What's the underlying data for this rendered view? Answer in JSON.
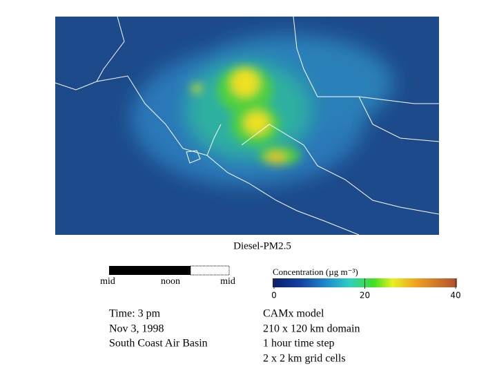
{
  "map": {
    "title": "Diesel-PM2.5"
  },
  "timeline": {
    "labels": [
      "mid",
      "noon",
      "mid"
    ]
  },
  "colorbar": {
    "label": "Concentration (µg m⁻³)",
    "range": [
      0,
      40
    ],
    "ticks": [
      0,
      20,
      40
    ]
  },
  "info_left": [
    "Time: 3 pm",
    "Nov 3, 1998",
    "South Coast Air Basin"
  ],
  "info_right": [
    "CAMx model",
    "210 x 120 km domain",
    "1 hour time step",
    "2 x 2 km grid cells"
  ]
}
